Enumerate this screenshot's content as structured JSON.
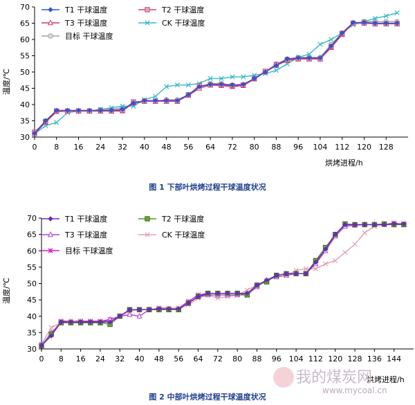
{
  "figures": [
    {
      "caption": "图 1 下部叶烘烤过程干球温度状况",
      "xlabel": "烘烤进程/h",
      "ylabel": "温度/℃",
      "legend": [
        {
          "label": "T1 干球温度",
          "key": "T1"
        },
        {
          "label": "T2 干球温度",
          "key": "T2"
        },
        {
          "label": "T3 干球温度",
          "key": "T3"
        },
        {
          "label": "CK 干球温度",
          "key": "CK"
        },
        {
          "label": "目标 干球温度",
          "key": "TG"
        }
      ],
      "xticks": [
        "0",
        "8",
        "16",
        "24",
        "32",
        "40",
        "48",
        "56",
        "64",
        "72",
        "80",
        "88",
        "96",
        "104",
        "112",
        "120",
        "128"
      ],
      "yticks": [
        "30",
        "35",
        "40",
        "45",
        "50",
        "55",
        "60",
        "65",
        "70"
      ]
    },
    {
      "caption": "图 2 中部叶烘烤过程干球温度状况",
      "xlabel": "烘烤进程/h",
      "ylabel": "温度/℃",
      "legend": [
        {
          "label": "T1 干球温度",
          "key": "T1"
        },
        {
          "label": "T2 干球温度",
          "key": "T2"
        },
        {
          "label": "T3 干球温度",
          "key": "T3"
        },
        {
          "label": "CK 干球温度",
          "key": "CK"
        },
        {
          "label": "目标 干球温度",
          "key": "TG"
        }
      ],
      "xticks": [
        "0",
        "8",
        "16",
        "24",
        "32",
        "40",
        "48",
        "56",
        "64",
        "72",
        "80",
        "88",
        "96",
        "104",
        "112",
        "120",
        "128",
        "136",
        "144"
      ],
      "yticks": [
        "30",
        "35",
        "40",
        "45",
        "50",
        "55",
        "60",
        "65",
        "70"
      ]
    }
  ],
  "watermark": {
    "text": "我的煤炭网",
    "url": "www.mycoal.cn"
  },
  "colors": {
    "T1": "#3355cc",
    "T2": "#d04070",
    "T3": "#cc3377",
    "CK": "#33b8c8",
    "TG": "#a0a0a0",
    "T1b": "#6a2bb8",
    "T2b": "#4a9a2a",
    "T3b": "#b040d8",
    "CKb": "#e0a0b0",
    "TGb": "#d020c0"
  },
  "chart_data": [
    {
      "type": "line",
      "title": "图 1 下部叶烘烤过程干球温度状况",
      "xlabel": "烘烤进程/h",
      "ylabel": "温度/℃",
      "xlim": [
        0,
        136
      ],
      "ylim": [
        30,
        70
      ],
      "legend_position": "top-left",
      "series": [
        {
          "name": "T1 干球温度",
          "x": [
            0,
            4,
            8,
            12,
            16,
            20,
            24,
            28,
            32,
            36,
            40,
            44,
            48,
            52,
            56,
            60,
            64,
            68,
            72,
            76,
            80,
            84,
            88,
            92,
            96,
            100,
            104,
            108,
            112,
            116,
            120,
            124,
            128,
            132
          ],
          "values": [
            31.2,
            35.0,
            38.2,
            38.2,
            38.2,
            38.2,
            38.2,
            38.2,
            38.5,
            40.5,
            41.2,
            41.2,
            41.2,
            41.2,
            43.0,
            45.5,
            46.2,
            46.2,
            46.0,
            46.2,
            48.0,
            50.0,
            52.0,
            54.0,
            54.3,
            54.3,
            54.3,
            58.0,
            62.0,
            65.2,
            65.2,
            65.0,
            65.0,
            65.0
          ]
        },
        {
          "name": "T2 干球温度",
          "x": [
            0,
            4,
            8,
            12,
            16,
            20,
            24,
            28,
            32,
            36,
            40,
            44,
            48,
            52,
            56,
            60,
            64,
            68,
            72,
            76,
            80,
            84,
            88,
            92,
            96,
            100,
            104,
            108,
            112,
            116,
            120,
            124,
            128,
            132
          ],
          "values": [
            31.5,
            34.8,
            38.0,
            38.0,
            38.0,
            38.0,
            38.0,
            38.0,
            38.2,
            40.8,
            41.0,
            41.0,
            41.0,
            41.0,
            43.0,
            45.8,
            46.0,
            46.0,
            45.8,
            46.0,
            48.0,
            50.2,
            52.2,
            53.8,
            54.0,
            54.0,
            54.0,
            57.8,
            61.8,
            65.0,
            65.0,
            64.8,
            64.8,
            64.8
          ]
        },
        {
          "name": "T3 干球温度",
          "x": [
            0,
            4,
            8,
            12,
            16,
            20,
            24,
            28,
            32,
            36,
            40,
            44,
            48,
            52,
            56,
            60,
            64,
            68,
            72,
            76,
            80,
            84,
            88,
            92,
            96,
            100,
            104,
            108,
            112,
            116,
            120,
            124,
            128,
            132
          ],
          "values": [
            31.0,
            34.5,
            37.8,
            38.0,
            38.0,
            38.0,
            38.0,
            38.0,
            38.0,
            40.5,
            41.0,
            41.0,
            41.2,
            41.0,
            42.8,
            45.0,
            46.0,
            45.8,
            45.5,
            45.8,
            47.8,
            50.0,
            52.0,
            53.5,
            54.0,
            54.0,
            54.0,
            57.5,
            61.5,
            65.0,
            65.2,
            65.0,
            64.8,
            65.0
          ]
        },
        {
          "name": "CK 干球温度",
          "x": [
            0,
            4,
            8,
            12,
            16,
            20,
            24,
            28,
            32,
            36,
            40,
            44,
            48,
            52,
            56,
            60,
            64,
            68,
            72,
            76,
            80,
            84,
            88,
            92,
            96,
            100,
            104,
            108,
            112,
            116,
            120,
            124,
            128,
            132
          ],
          "values": [
            31.0,
            33.5,
            34.5,
            37.5,
            38.0,
            38.0,
            38.5,
            39.0,
            39.5,
            39.5,
            41.5,
            42.5,
            45.5,
            46.0,
            46.0,
            46.5,
            48.0,
            48.0,
            48.5,
            48.5,
            49.0,
            49.5,
            50.5,
            52.5,
            54.5,
            55.5,
            58.5,
            60.0,
            62.0,
            64.5,
            65.5,
            66.5,
            67.2,
            68.2
          ]
        },
        {
          "name": "目标 干球温度",
          "x": [
            0,
            4,
            8,
            12,
            16,
            20,
            24,
            28,
            32,
            36,
            40,
            44,
            48,
            52,
            56,
            60,
            64,
            68,
            72,
            76,
            80,
            84,
            88,
            92,
            96,
            100,
            104,
            108,
            112,
            116,
            120,
            124,
            128,
            132
          ],
          "values": [
            31.3,
            35.0,
            38.0,
            38.0,
            38.0,
            38.0,
            38.5,
            38.5,
            39.0,
            40.0,
            41.0,
            41.0,
            41.5,
            41.5,
            43.0,
            45.5,
            46.5,
            46.5,
            46.0,
            46.0,
            48.0,
            50.0,
            52.5,
            54.0,
            54.5,
            54.5,
            54.5,
            58.5,
            62.0,
            65.0,
            65.5,
            65.5,
            65.5,
            65.5
          ]
        }
      ]
    },
    {
      "type": "line",
      "title": "图 2 中部叶烘烤过程干球温度状况",
      "xlabel": "烘烤进程/h",
      "ylabel": "温度/℃",
      "xlim": [
        0,
        152
      ],
      "ylim": [
        30,
        70
      ],
      "legend_position": "top-left",
      "series": [
        {
          "name": "T1 干球温度",
          "x": [
            0,
            4,
            8,
            12,
            16,
            20,
            24,
            28,
            32,
            36,
            40,
            44,
            48,
            52,
            56,
            60,
            64,
            68,
            72,
            76,
            80,
            84,
            88,
            92,
            96,
            100,
            104,
            108,
            112,
            116,
            120,
            124,
            128,
            132,
            136,
            140,
            144,
            148
          ],
          "values": [
            31.0,
            34.0,
            38.2,
            38.2,
            38.2,
            38.2,
            38.2,
            38.2,
            40.0,
            42.0,
            42.0,
            42.0,
            42.2,
            42.2,
            42.2,
            44.0,
            46.0,
            47.0,
            47.0,
            47.0,
            47.0,
            47.0,
            49.5,
            51.0,
            52.5,
            53.0,
            53.0,
            53.0,
            56.5,
            60.5,
            65.0,
            68.0,
            68.0,
            68.0,
            68.0,
            68.0,
            68.2,
            68.2
          ]
        },
        {
          "name": "T2 干球温度",
          "x": [
            0,
            4,
            8,
            12,
            16,
            20,
            24,
            28,
            32,
            36,
            40,
            44,
            48,
            52,
            56,
            60,
            64,
            68,
            72,
            76,
            80,
            84,
            88,
            92,
            96,
            100,
            104,
            108,
            112,
            116,
            120,
            124,
            128,
            132,
            136,
            140,
            144,
            148
          ],
          "values": [
            31.0,
            34.5,
            38.0,
            38.0,
            38.0,
            38.0,
            38.0,
            37.5,
            40.0,
            42.0,
            42.0,
            42.0,
            42.0,
            42.0,
            42.0,
            44.0,
            46.0,
            47.0,
            47.0,
            47.0,
            47.0,
            46.5,
            49.5,
            50.5,
            52.5,
            53.0,
            53.0,
            53.0,
            57.0,
            61.0,
            65.0,
            68.2,
            68.0,
            68.0,
            68.0,
            68.2,
            68.0,
            68.0
          ]
        },
        {
          "name": "T3 干球温度",
          "x": [
            0,
            4,
            8,
            12,
            16,
            20,
            24,
            28,
            32,
            36,
            40,
            44,
            48,
            52,
            56,
            60,
            64,
            68,
            72,
            76,
            80,
            84,
            88,
            92,
            96,
            100,
            104,
            108,
            112,
            116,
            120,
            124,
            128,
            132,
            136,
            140,
            144,
            148
          ],
          "values": [
            31.0,
            35.0,
            38.0,
            38.0,
            38.0,
            38.0,
            38.0,
            39.0,
            40.0,
            40.5,
            40.0,
            42.0,
            42.0,
            42.0,
            42.0,
            44.0,
            46.0,
            46.5,
            46.5,
            46.5,
            46.5,
            46.5,
            49.0,
            51.0,
            52.0,
            52.5,
            53.0,
            53.0,
            56.0,
            60.0,
            64.5,
            67.5,
            67.8,
            68.0,
            68.0,
            68.0,
            68.0,
            68.0
          ]
        },
        {
          "name": "CK 干球温度",
          "x": [
            0,
            4,
            8,
            12,
            16,
            20,
            24,
            28,
            32,
            36,
            40,
            44,
            48,
            52,
            56,
            60,
            64,
            68,
            72,
            76,
            80,
            84,
            88,
            92,
            96,
            100,
            104,
            108,
            112,
            116,
            120,
            124,
            128,
            132,
            136,
            140,
            144,
            148
          ],
          "values": [
            31.5,
            36.5,
            38.0,
            38.5,
            38.2,
            38.2,
            38.2,
            38.5,
            40.0,
            41.5,
            42.0,
            42.2,
            42.2,
            42.5,
            42.5,
            43.5,
            45.5,
            46.5,
            45.5,
            46.0,
            46.5,
            48.0,
            49.5,
            51.0,
            52.0,
            52.5,
            54.0,
            54.5,
            54.5,
            56.0,
            57.0,
            59.5,
            62.0,
            65.5,
            67.5,
            68.0,
            68.0,
            68.5
          ]
        },
        {
          "name": "目标 干球温度",
          "x": [
            0,
            4,
            8,
            12,
            16,
            20,
            24,
            28,
            32,
            36,
            40,
            44,
            48,
            52,
            56,
            60,
            64,
            68,
            72,
            76,
            80,
            84,
            88,
            92,
            96,
            100,
            104,
            108,
            112,
            116,
            120,
            124,
            128,
            132,
            136,
            140,
            144,
            148
          ],
          "values": [
            31.0,
            34.5,
            38.5,
            38.5,
            38.5,
            38.5,
            38.5,
            39.0,
            40.0,
            42.0,
            42.0,
            42.0,
            42.5,
            42.5,
            42.5,
            44.5,
            46.5,
            47.0,
            47.0,
            47.0,
            47.0,
            47.0,
            49.0,
            51.0,
            52.5,
            53.0,
            53.0,
            53.0,
            57.0,
            61.0,
            65.0,
            68.0,
            68.0,
            68.0,
            68.0,
            68.0,
            68.5,
            68.0
          ]
        }
      ]
    }
  ]
}
